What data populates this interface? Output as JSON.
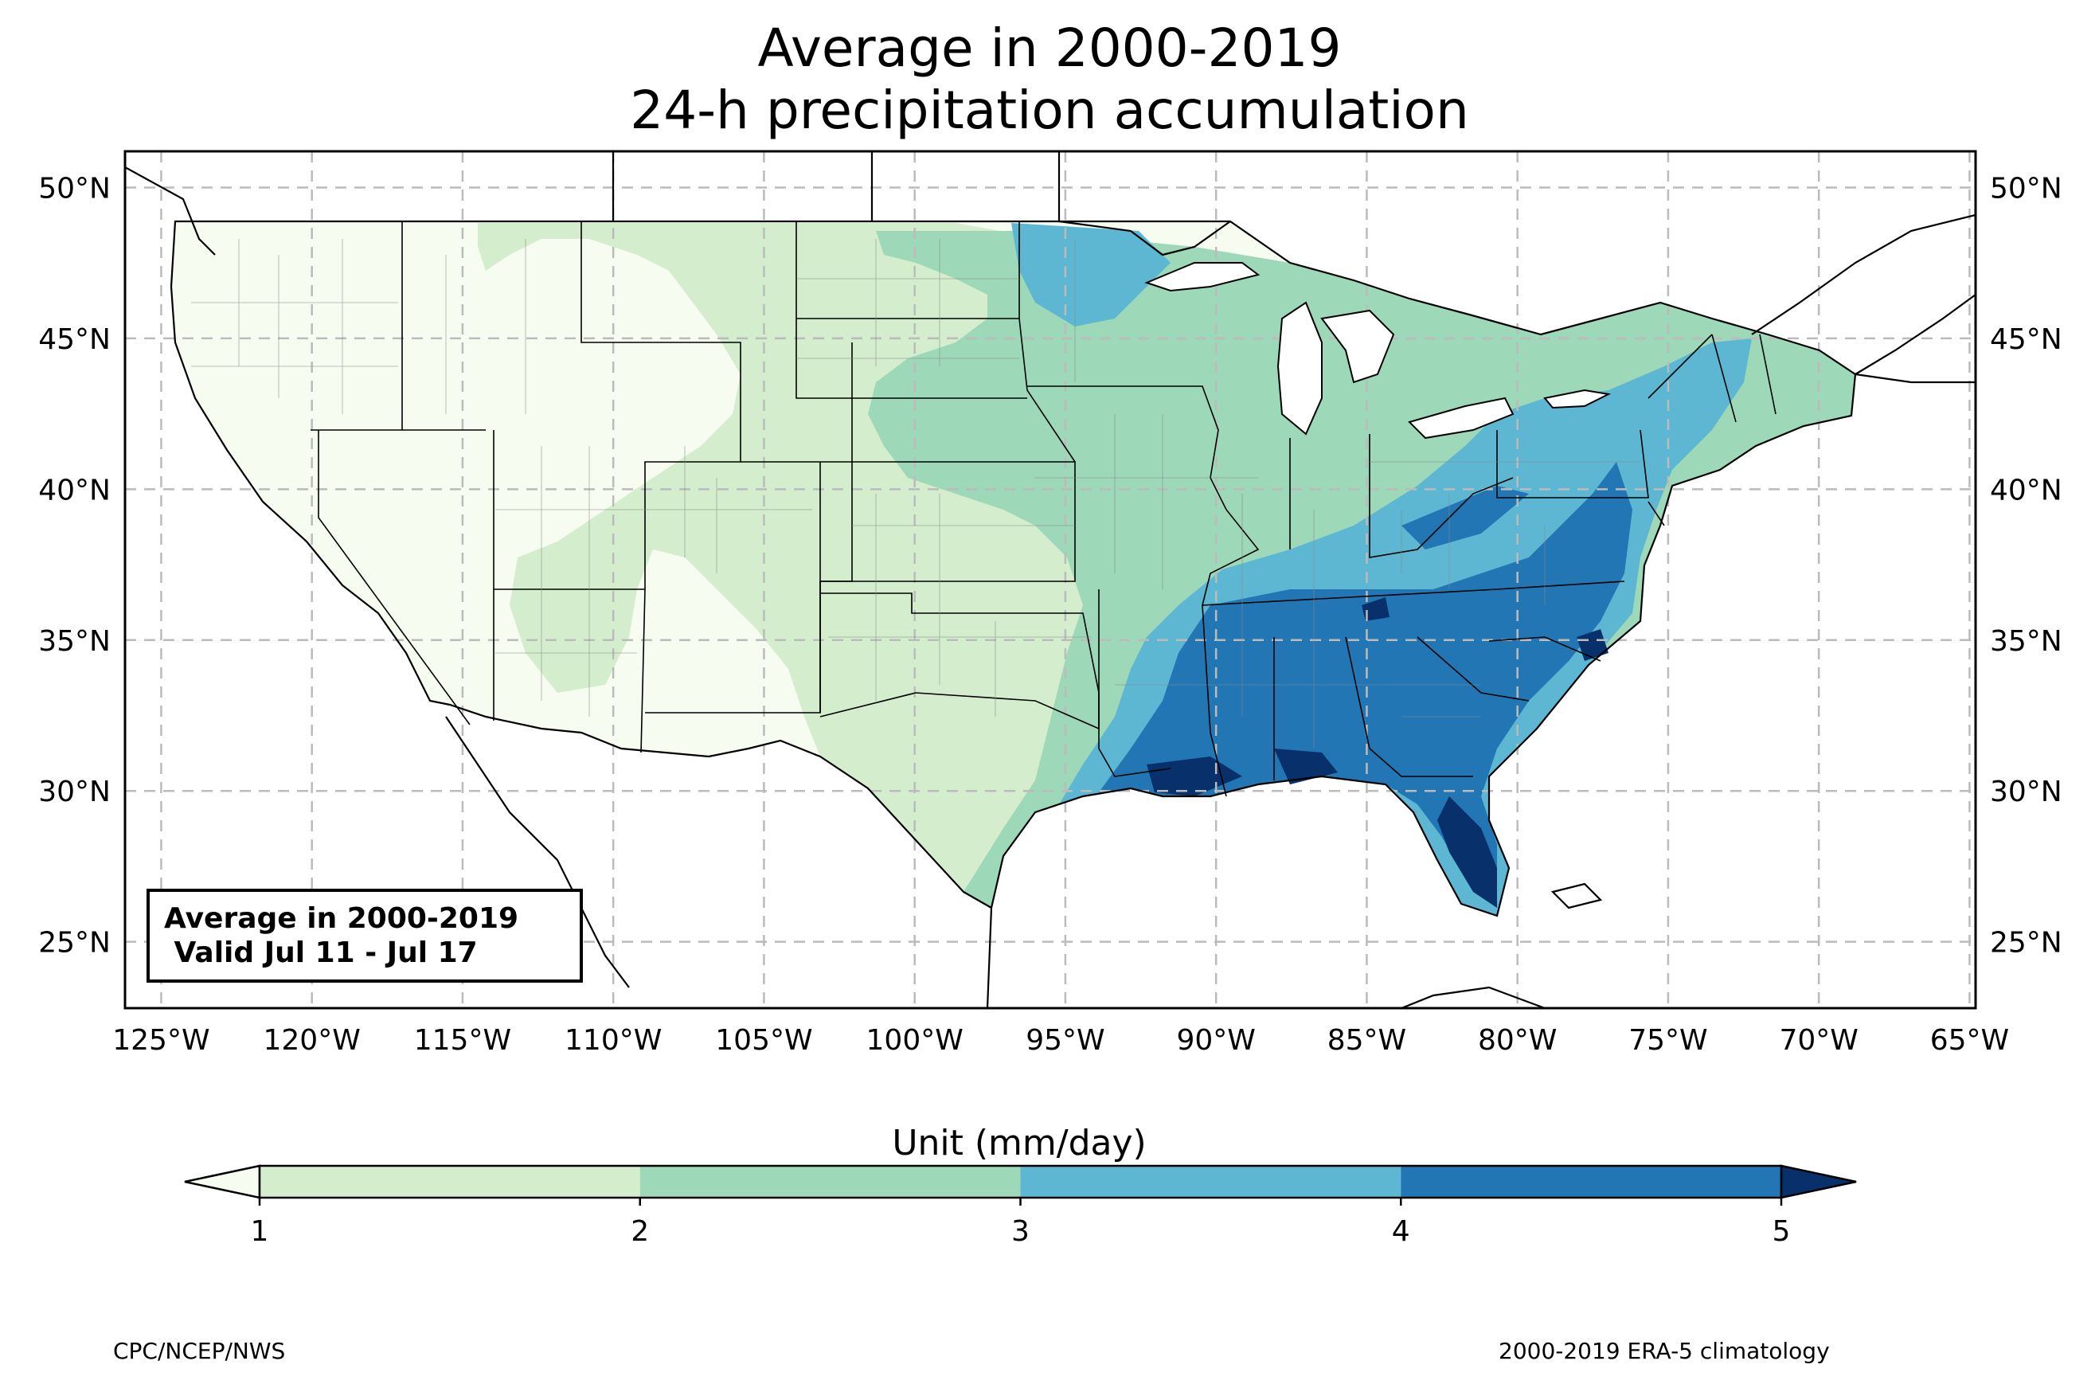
{
  "title": {
    "line1": "Average in 2000-2019",
    "line2": "24-h precipitation accumulation"
  },
  "map": {
    "region": "Contiguous United States",
    "lon_ticks": [
      "125°W",
      "120°W",
      "115°W",
      "110°W",
      "105°W",
      "100°W",
      "95°W",
      "90°W",
      "85°W",
      "80°W",
      "75°W",
      "70°W",
      "65°W"
    ],
    "lat_ticks": [
      "50°N",
      "45°N",
      "40°N",
      "35°N",
      "30°N",
      "25°N"
    ],
    "extent": {
      "lon": [
        -126.2,
        -64.8
      ],
      "lat": [
        22.8,
        51.2
      ]
    },
    "gridlines": true,
    "features": [
      "coastlines",
      "country borders",
      "state borders",
      "county borders"
    ]
  },
  "info_box": {
    "line1": "Average in 2000-2019",
    "line2": " Valid Jul 11 - Jul 17"
  },
  "colorbar": {
    "label": "Unit (mm/day)",
    "ticks": [
      "1",
      "2",
      "3",
      "4",
      "5"
    ],
    "extend": "both",
    "levels": [
      {
        "range": "<1",
        "color": "#f7fcf0"
      },
      {
        "range": "1-2",
        "color": "#d4eecd"
      },
      {
        "range": "2-3",
        "color": "#9dd8b8"
      },
      {
        "range": "3-4",
        "color": "#5db7d2"
      },
      {
        "range": "4-5",
        "color": "#2276b4"
      },
      {
        "range": ">5",
        "color": "#08306b"
      }
    ]
  },
  "footer": {
    "left": "CPC/NCEP/NWS",
    "right": "2000-2019 ERA-5 climatology"
  }
}
